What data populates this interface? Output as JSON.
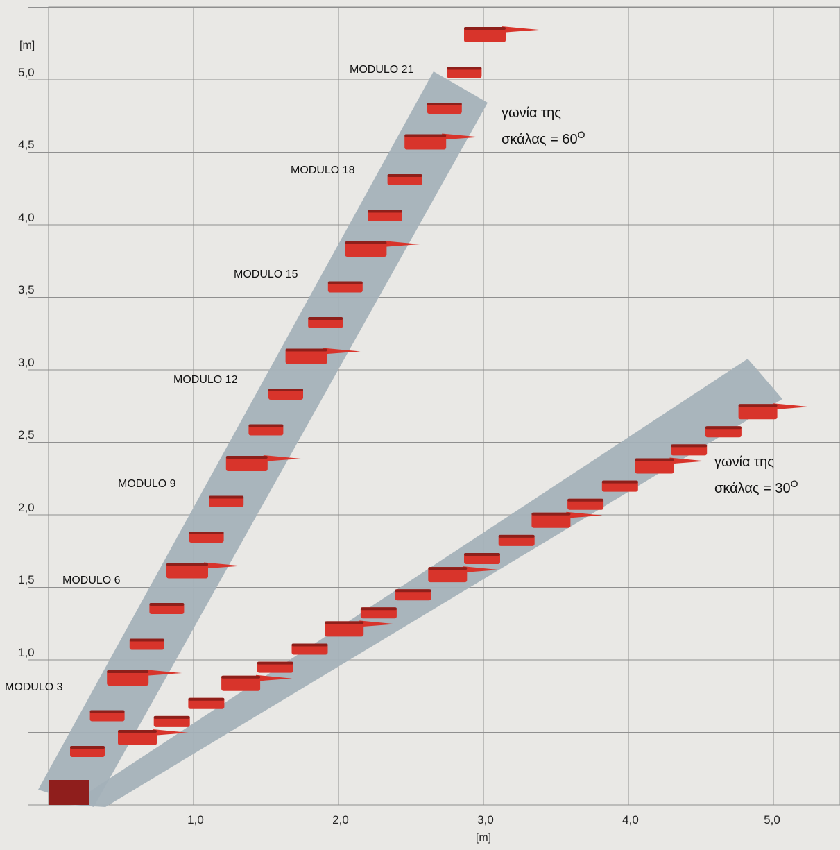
{
  "axes": {
    "x_unit": "[m]",
    "y_unit": "[m]",
    "x_ticks": [
      "1,0",
      "2,0",
      "3,0",
      "4,0",
      "5,0"
    ],
    "y_ticks": [
      "1,0",
      "1,5",
      "2,0",
      "2,5",
      "3,0",
      "3,5",
      "4,0",
      "4,5",
      "5,0"
    ]
  },
  "module_labels": [
    "MODULO 3",
    "MODULO 6",
    "MODULO 9",
    "MODULO 12",
    "MODULO 15",
    "MODULO 18",
    "MODULO 21"
  ],
  "stairs": [
    {
      "angle_deg": 60,
      "annotation_line1": "γωνία της",
      "annotation_line2": "σκάλας = 60",
      "degree_symbol": "O"
    },
    {
      "angle_deg": 30,
      "annotation_line1": "γωνία της",
      "annotation_line2": "σκάλας = 30",
      "degree_symbol": "O"
    }
  ],
  "colors": {
    "background": "#e9e8e5",
    "grid": "#8f8f8f",
    "stair_rail": "#a4b0b9",
    "step_red": "#d8342b",
    "step_dark": "#8e1f1a",
    "base_block": "#8f1e1c"
  }
}
